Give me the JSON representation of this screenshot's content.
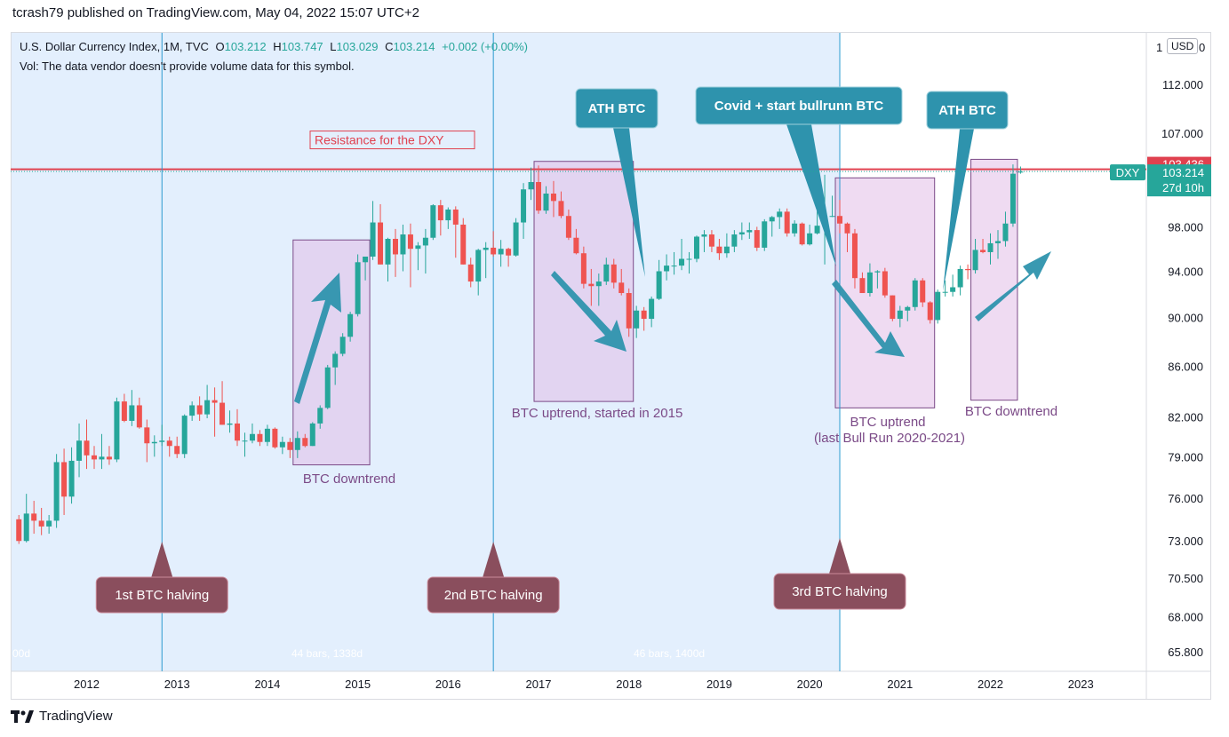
{
  "publisher": "tcrash79 published on TradingView.com, May 04, 2022 15:07 UTC+2",
  "legend": {
    "symbol_line_prefix": "U.S. Dollar Currency Index, 1M, TVC",
    "o_label": "O",
    "o_val": "103.212",
    "h_label": "H",
    "h_val": "103.747",
    "l_label": "L",
    "l_val": "103.029",
    "c_label": "C",
    "c_val": "103.214",
    "change": "+0.002 (+0.00%)",
    "vol_line": "Vol: The data vendor doesn't provide volume data for this symbol."
  },
  "currency_button": "USD",
  "footer": "TradingView",
  "colors": {
    "up": "#26a69a",
    "down": "#ef5350",
    "shaded_bg": "#e3effd",
    "box_fill": "#e1bee7",
    "box_stroke": "#7b4a87",
    "arrow": "#2e93ad",
    "halving_bg": "#8a4e5d",
    "resistance": "#e0414f",
    "vline": "#2b9ad0"
  },
  "chart_data": {
    "type": "candlestick",
    "title": "U.S. Dollar Currency Index, 1M, TVC",
    "x_axis_labels": [
      "2012",
      "2013",
      "2014",
      "2015",
      "2016",
      "2017",
      "2018",
      "2019",
      "2020",
      "2021",
      "2022",
      "2023"
    ],
    "y_axis_labels": [
      "112.000",
      "107.000",
      "98.000",
      "94.000",
      "90.000",
      "86.000",
      "82.000",
      "79.000",
      "76.000",
      "73.000",
      "70.500",
      "68.000",
      "65.800"
    ],
    "y_axis_cut_labels": [
      "1",
      "0"
    ],
    "ylim": [
      65.8,
      112
    ],
    "y_scale": "log",
    "last_close": "103.214",
    "price_tags": {
      "resistance": "103.436",
      "symbol": "DXY",
      "current": "103.214",
      "countdown": "27d 10h"
    },
    "resistance_level": 103.436,
    "resistance_label": "Resistance for the DXY",
    "candles": [
      [
        "2011-04",
        74.5,
        74.8,
        72.8,
        73.0
      ],
      [
        "2011-05",
        73.0,
        76.3,
        72.9,
        74.9
      ],
      [
        "2011-06",
        74.9,
        75.8,
        73.5,
        74.4
      ],
      [
        "2011-07",
        74.4,
        75.3,
        73.4,
        74.0
      ],
      [
        "2011-08",
        74.0,
        74.8,
        73.5,
        74.4
      ],
      [
        "2011-09",
        74.4,
        79.2,
        73.9,
        78.6
      ],
      [
        "2011-10",
        78.6,
        79.6,
        74.8,
        76.1
      ],
      [
        "2011-11",
        76.1,
        79.7,
        75.6,
        78.7
      ],
      [
        "2011-12",
        78.7,
        81.5,
        77.5,
        80.2
      ],
      [
        "2012-01",
        80.2,
        81.8,
        78.1,
        79.1
      ],
      [
        "2012-02",
        79.1,
        79.8,
        78.1,
        78.8
      ],
      [
        "2012-03",
        78.8,
        80.7,
        78.1,
        79.0
      ],
      [
        "2012-04",
        79.0,
        79.8,
        78.4,
        78.8
      ],
      [
        "2012-05",
        78.8,
        83.5,
        78.6,
        83.2
      ],
      [
        "2012-06",
        83.2,
        83.8,
        81.6,
        81.7
      ],
      [
        "2012-07",
        81.7,
        84.1,
        81.3,
        82.9
      ],
      [
        "2012-08",
        82.9,
        83.5,
        81.1,
        81.2
      ],
      [
        "2012-09",
        81.2,
        81.8,
        78.6,
        80.0
      ],
      [
        "2012-10",
        80.0,
        80.6,
        79.0,
        80.1
      ],
      [
        "2012-11",
        80.1,
        81.4,
        79.8,
        80.2
      ],
      [
        "2012-12",
        80.2,
        80.5,
        79.0,
        79.8
      ],
      [
        "2013-01",
        79.8,
        80.5,
        78.9,
        79.2
      ],
      [
        "2013-02",
        79.2,
        82.2,
        78.9,
        82.1
      ],
      [
        "2013-03",
        82.1,
        83.2,
        81.7,
        82.9
      ],
      [
        "2013-04",
        82.9,
        83.6,
        81.7,
        82.2
      ],
      [
        "2013-05",
        82.2,
        84.5,
        81.9,
        83.3
      ],
      [
        "2013-06",
        83.3,
        84.3,
        80.5,
        83.1
      ],
      [
        "2013-07",
        83.1,
        84.8,
        81.4,
        81.4
      ],
      [
        "2013-08",
        81.4,
        82.5,
        80.8,
        81.5
      ],
      [
        "2013-09",
        81.5,
        82.6,
        79.8,
        80.2
      ],
      [
        "2013-10",
        80.2,
        80.8,
        79.0,
        80.2
      ],
      [
        "2013-11",
        80.2,
        81.5,
        80.0,
        80.7
      ],
      [
        "2013-12",
        80.7,
        81.0,
        79.8,
        80.1
      ],
      [
        "2014-01",
        80.1,
        81.4,
        79.8,
        81.1
      ],
      [
        "2014-02",
        81.1,
        81.2,
        79.6,
        79.7
      ],
      [
        "2014-03",
        79.7,
        80.5,
        79.2,
        80.1
      ],
      [
        "2014-04",
        80.1,
        80.4,
        78.9,
        79.5
      ],
      [
        "2014-05",
        79.5,
        80.9,
        78.9,
        80.4
      ],
      [
        "2014-06",
        80.4,
        80.7,
        79.7,
        79.8
      ],
      [
        "2014-07",
        79.8,
        81.6,
        79.8,
        81.5
      ],
      [
        "2014-08",
        81.5,
        82.9,
        81.1,
        82.7
      ],
      [
        "2014-09",
        82.7,
        86.1,
        82.6,
        85.9
      ],
      [
        "2014-10",
        85.9,
        87.2,
        84.5,
        87.0
      ],
      [
        "2014-11",
        87.0,
        88.7,
        86.8,
        88.4
      ],
      [
        "2014-12",
        88.4,
        90.5,
        88.0,
        90.3
      ],
      [
        "2015-01",
        90.3,
        95.5,
        90.1,
        94.8
      ],
      [
        "2015-02",
        94.8,
        95.3,
        93.2,
        95.3
      ],
      [
        "2015-03",
        95.3,
        100.4,
        95.0,
        98.4
      ],
      [
        "2015-04",
        98.4,
        100.1,
        94.6,
        94.6
      ],
      [
        "2015-05",
        94.6,
        97.0,
        93.1,
        96.9
      ],
      [
        "2015-06",
        96.9,
        97.8,
        93.5,
        95.5
      ],
      [
        "2015-07",
        95.5,
        98.2,
        94.0,
        97.3
      ],
      [
        "2015-08",
        97.3,
        98.3,
        92.6,
        96.0
      ],
      [
        "2015-09",
        96.0,
        96.6,
        94.1,
        96.3
      ],
      [
        "2015-10",
        96.3,
        97.8,
        93.8,
        97.0
      ],
      [
        "2015-11",
        97.0,
        100.1,
        96.8,
        100.0
      ],
      [
        "2015-12",
        100.0,
        100.5,
        97.2,
        98.6
      ],
      [
        "2016-01",
        98.6,
        99.8,
        97.8,
        99.6
      ],
      [
        "2016-02",
        99.6,
        99.9,
        95.2,
        98.2
      ],
      [
        "2016-03",
        98.2,
        98.8,
        94.6,
        94.6
      ],
      [
        "2016-04",
        94.6,
        95.2,
        92.6,
        93.1
      ],
      [
        "2016-05",
        93.1,
        96.0,
        91.9,
        95.9
      ],
      [
        "2016-06",
        95.9,
        96.6,
        93.4,
        96.1
      ],
      [
        "2016-07",
        96.1,
        97.6,
        95.3,
        95.5
      ],
      [
        "2016-08",
        95.5,
        96.8,
        94.4,
        96.0
      ],
      [
        "2016-09",
        96.0,
        96.1,
        94.4,
        95.4
      ],
      [
        "2016-10",
        95.4,
        98.8,
        95.3,
        98.4
      ],
      [
        "2016-11",
        98.4,
        102.1,
        96.9,
        101.5
      ],
      [
        "2016-12",
        101.5,
        103.6,
        100.5,
        102.2
      ],
      [
        "2017-01",
        102.2,
        103.8,
        99.2,
        99.5
      ],
      [
        "2017-02",
        99.5,
        101.8,
        99.2,
        101.1
      ],
      [
        "2017-03",
        101.1,
        102.3,
        98.9,
        100.4
      ],
      [
        "2017-04",
        100.4,
        101.3,
        98.8,
        99.0
      ],
      [
        "2017-05",
        99.0,
        99.6,
        96.8,
        97.0
      ],
      [
        "2017-06",
        97.0,
        97.8,
        95.5,
        95.6
      ],
      [
        "2017-07",
        95.6,
        96.2,
        92.5,
        92.9
      ],
      [
        "2017-08",
        92.9,
        94.2,
        91.0,
        92.7
      ],
      [
        "2017-09",
        92.7,
        93.8,
        91.0,
        93.1
      ],
      [
        "2017-10",
        93.1,
        95.2,
        92.8,
        94.6
      ],
      [
        "2017-11",
        94.6,
        95.1,
        92.5,
        93.0
      ],
      [
        "2017-12",
        93.0,
        94.2,
        91.9,
        92.1
      ],
      [
        "2018-01",
        92.1,
        92.5,
        88.4,
        89.1
      ],
      [
        "2018-02",
        89.1,
        91.0,
        88.3,
        90.6
      ],
      [
        "2018-03",
        90.6,
        90.9,
        88.9,
        89.9
      ],
      [
        "2018-04",
        89.9,
        91.8,
        89.2,
        91.6
      ],
      [
        "2018-05",
        91.6,
        95.0,
        91.5,
        94.0
      ],
      [
        "2018-06",
        94.0,
        95.5,
        93.2,
        94.5
      ],
      [
        "2018-07",
        94.5,
        95.7,
        93.7,
        94.5
      ],
      [
        "2018-08",
        94.5,
        96.9,
        94.1,
        95.1
      ],
      [
        "2018-09",
        95.1,
        95.7,
        93.8,
        95.1
      ],
      [
        "2018-10",
        95.1,
        97.2,
        94.8,
        97.1
      ],
      [
        "2018-11",
        97.1,
        97.7,
        95.7,
        97.3
      ],
      [
        "2018-12",
        97.3,
        97.7,
        95.7,
        96.2
      ],
      [
        "2019-01",
        96.2,
        96.9,
        95.0,
        95.6
      ],
      [
        "2019-02",
        95.6,
        97.4,
        95.2,
        96.2
      ],
      [
        "2019-03",
        96.2,
        97.7,
        95.7,
        97.3
      ],
      [
        "2019-04",
        97.3,
        98.4,
        96.8,
        97.5
      ],
      [
        "2019-05",
        97.5,
        98.4,
        96.9,
        97.7
      ],
      [
        "2019-06",
        97.7,
        98.0,
        95.8,
        96.1
      ],
      [
        "2019-07",
        96.1,
        98.7,
        95.8,
        98.5
      ],
      [
        "2019-08",
        98.5,
        99.0,
        97.1,
        98.9
      ],
      [
        "2019-09",
        98.9,
        99.7,
        97.8,
        99.4
      ],
      [
        "2019-10",
        99.4,
        99.7,
        97.1,
        97.4
      ],
      [
        "2019-11",
        97.4,
        98.6,
        97.1,
        98.3
      ],
      [
        "2019-12",
        98.3,
        98.4,
        96.3,
        96.4
      ],
      [
        "2020-01",
        96.4,
        98.2,
        96.3,
        97.4
      ],
      [
        "2020-02",
        97.4,
        99.9,
        97.3,
        98.1
      ],
      [
        "2020-03",
        98.1,
        102.9,
        94.6,
        99.0
      ],
      [
        "2020-04",
        99.0,
        100.9,
        98.9,
        99.0
      ],
      [
        "2020-05",
        99.0,
        100.5,
        97.4,
        98.3
      ],
      [
        "2020-06",
        98.3,
        98.4,
        95.7,
        97.4
      ],
      [
        "2020-07",
        97.4,
        97.8,
        92.5,
        93.4
      ],
      [
        "2020-08",
        93.4,
        93.9,
        92.2,
        92.1
      ],
      [
        "2020-09",
        92.1,
        94.7,
        91.8,
        93.9
      ],
      [
        "2020-10",
        93.9,
        94.1,
        92.5,
        94.0
      ],
      [
        "2020-11",
        94.0,
        94.3,
        91.7,
        91.9
      ],
      [
        "2020-12",
        91.9,
        91.9,
        89.7,
        89.9
      ],
      [
        "2021-01",
        89.9,
        91.0,
        89.2,
        90.6
      ],
      [
        "2021-02",
        90.6,
        91.0,
        89.7,
        90.9
      ],
      [
        "2021-03",
        90.9,
        93.4,
        90.6,
        93.2
      ],
      [
        "2021-04",
        93.2,
        93.4,
        90.9,
        91.3
      ],
      [
        "2021-05",
        91.3,
        91.4,
        89.5,
        89.8
      ],
      [
        "2021-06",
        89.8,
        92.4,
        89.5,
        92.2
      ],
      [
        "2021-07",
        92.2,
        93.2,
        91.8,
        92.2
      ],
      [
        "2021-08",
        92.2,
        93.7,
        91.8,
        92.6
      ],
      [
        "2021-09",
        92.6,
        94.5,
        91.9,
        94.2
      ],
      [
        "2021-10",
        94.2,
        94.6,
        93.3,
        94.1
      ],
      [
        "2021-11",
        94.1,
        96.9,
        93.8,
        95.9
      ],
      [
        "2021-12",
        95.9,
        96.9,
        95.6,
        95.7
      ],
      [
        "2022-01",
        95.7,
        97.4,
        94.6,
        96.5
      ],
      [
        "2022-02",
        96.5,
        97.7,
        95.1,
        96.7
      ],
      [
        "2022-03",
        96.7,
        99.4,
        96.2,
        98.3
      ],
      [
        "2022-04",
        98.3,
        103.9,
        98.0,
        103.0
      ],
      [
        "2022-05",
        103.2,
        103.7,
        103.0,
        103.2
      ]
    ],
    "halvings": [
      {
        "date": "2012-11",
        "label": "1st BTC halving"
      },
      {
        "date": "2016-07",
        "label": "2nd BTC halving"
      },
      {
        "date": "2020-05",
        "label": "3rd BTC halving"
      }
    ],
    "bar_counts": [
      {
        "text": "00d"
      },
      {
        "text": "44 bars, 1338d"
      },
      {
        "text": "46 bars, 1400d"
      }
    ],
    "boxes": [
      {
        "from": "2014-05",
        "to": "2015-02",
        "top": 96.8,
        "bottom": 78.4,
        "label": "BTC downtrend"
      },
      {
        "from": "2017-01",
        "to": "2018-01",
        "top": 104.2,
        "bottom": 83.2,
        "label": "BTC uptrend, started in 2015"
      },
      {
        "from": "2020-05",
        "to": "2021-05",
        "top": 102.6,
        "bottom": 82.7,
        "label": "BTC uptrend",
        "label2": "(last Bull Run 2020-2021)"
      },
      {
        "from": "2021-11",
        "to": "2022-04",
        "top": 104.4,
        "bottom": 83.3,
        "label": "BTC downtrend"
      }
    ],
    "callouts": [
      {
        "label": "ATH BTC"
      },
      {
        "label": "Covid + start bullrunn BTC"
      },
      {
        "label": "ATH BTC"
      }
    ]
  }
}
